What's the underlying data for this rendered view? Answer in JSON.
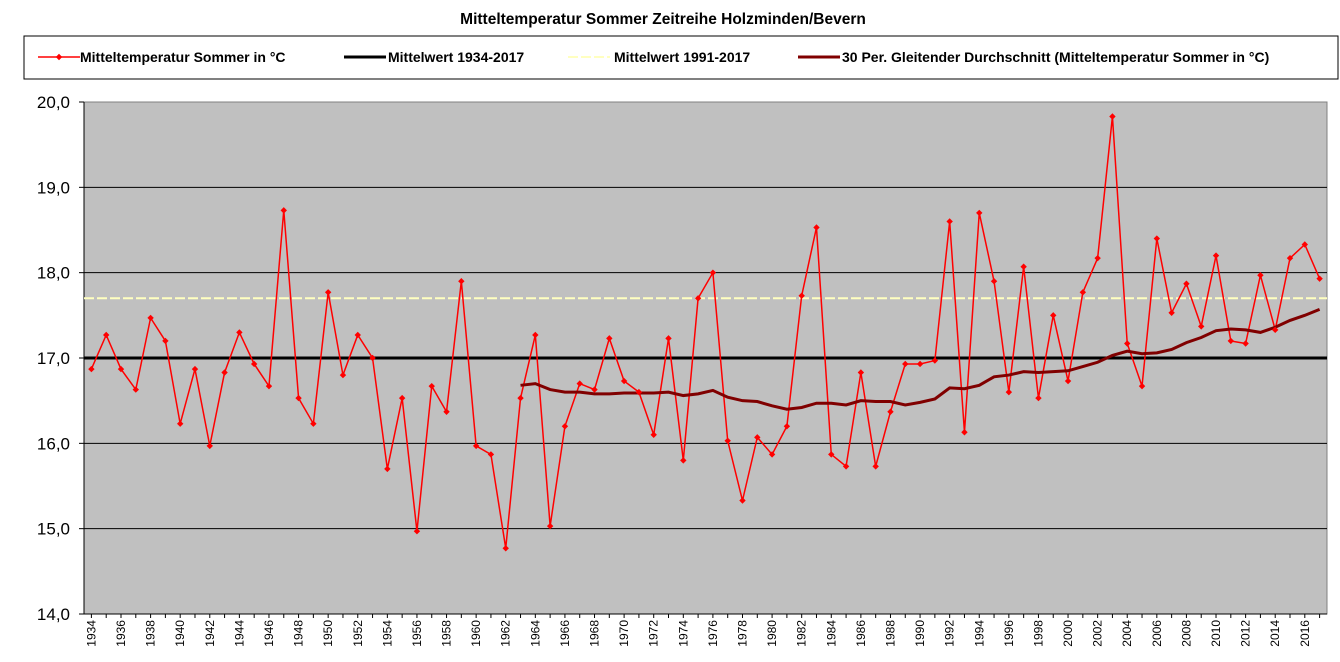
{
  "chart_data": {
    "type": "line",
    "title": "Mitteltemperatur Sommer Zeitreihe Holzminden/Bevern",
    "xlabel": "",
    "ylabel": "",
    "ylim": [
      14.0,
      20.0
    ],
    "y_ticks": [
      "14,0",
      "15,0",
      "16,0",
      "17,0",
      "18,0",
      "19,0",
      "20,0"
    ],
    "x_tick_labels": [
      "1934",
      "1936",
      "1938",
      "1940",
      "1942",
      "1944",
      "1946",
      "1948",
      "1950",
      "1952",
      "1954",
      "1956",
      "1958",
      "1960",
      "1962",
      "1964",
      "1966",
      "1968",
      "1970",
      "1972",
      "1974",
      "1976",
      "1978",
      "1980",
      "1982",
      "1984",
      "1986",
      "1988",
      "1990",
      "1992",
      "1994",
      "1996",
      "1998",
      "2000",
      "2002",
      "2004",
      "2006",
      "2008",
      "2010",
      "2012",
      "2014",
      "2016"
    ],
    "grid": true,
    "legend_position": "top",
    "plot_background": "#c0c0c0",
    "years": [
      1934,
      1935,
      1936,
      1937,
      1938,
      1939,
      1940,
      1941,
      1942,
      1943,
      1944,
      1945,
      1946,
      1947,
      1948,
      1949,
      1950,
      1951,
      1952,
      1953,
      1954,
      1955,
      1956,
      1957,
      1958,
      1959,
      1960,
      1961,
      1962,
      1963,
      1964,
      1965,
      1966,
      1967,
      1968,
      1969,
      1970,
      1971,
      1972,
      1973,
      1974,
      1975,
      1976,
      1977,
      1978,
      1979,
      1980,
      1981,
      1982,
      1983,
      1984,
      1985,
      1986,
      1987,
      1988,
      1989,
      1990,
      1991,
      1992,
      1993,
      1994,
      1995,
      1996,
      1997,
      1998,
      1999,
      2000,
      2001,
      2002,
      2003,
      2004,
      2005,
      2006,
      2007,
      2008,
      2009,
      2010,
      2011,
      2012,
      2013,
      2014,
      2015,
      2016,
      2017
    ],
    "series": [
      {
        "name": "Mitteltemperatur Sommer in °C",
        "color": "#ff0000",
        "style": "line-markers",
        "values": [
          16.87,
          17.27,
          16.87,
          16.63,
          17.47,
          17.2,
          16.23,
          16.87,
          15.97,
          16.83,
          17.3,
          16.93,
          16.67,
          18.73,
          16.53,
          16.23,
          17.77,
          16.8,
          17.27,
          17.0,
          15.7,
          16.53,
          14.97,
          16.67,
          16.37,
          17.9,
          15.97,
          15.87,
          14.77,
          16.53,
          17.27,
          15.03,
          16.2,
          16.7,
          16.63,
          17.23,
          16.73,
          16.6,
          16.1,
          17.23,
          15.8,
          17.7,
          18.0,
          16.03,
          15.33,
          16.07,
          15.87,
          16.2,
          17.73,
          18.53,
          15.87,
          15.73,
          16.83,
          15.73,
          16.37,
          16.93,
          16.93,
          16.97,
          18.6,
          16.13,
          18.7,
          17.9,
          16.6,
          18.07,
          16.53,
          17.5,
          16.73,
          17.77,
          18.17,
          19.83,
          17.17,
          16.67,
          18.4,
          17.53,
          17.87,
          17.37,
          18.2,
          17.2,
          17.17,
          17.97,
          17.33,
          18.17,
          18.33,
          17.93
        ]
      },
      {
        "name": "Mittelwert 1934-2017",
        "color": "#000000",
        "style": "flat",
        "values": [
          17.0
        ]
      },
      {
        "name": "Mittelwert 1991-2017",
        "color": "#ffffc0",
        "style": "flat-dashed",
        "values": [
          17.7
        ]
      },
      {
        "name": "30 Per. Gleitender Durchschnitt (Mitteltemperatur Sommer in °C)",
        "color": "#800000",
        "style": "line",
        "start_year": 1963,
        "values": [
          16.68,
          16.7,
          16.63,
          16.6,
          16.6,
          16.58,
          16.58,
          16.59,
          16.59,
          16.59,
          16.6,
          16.56,
          16.58,
          16.62,
          16.54,
          16.5,
          16.49,
          16.44,
          16.4,
          16.42,
          16.47,
          16.47,
          16.45,
          16.5,
          16.49,
          16.49,
          16.45,
          16.48,
          16.52,
          16.65,
          16.64,
          16.68,
          16.78,
          16.8,
          16.84,
          16.83,
          16.84,
          16.85,
          16.9,
          16.95,
          17.03,
          17.08,
          17.05,
          17.06,
          17.1,
          17.18,
          17.24,
          17.32,
          17.34,
          17.33,
          17.3,
          17.36,
          17.44,
          17.5,
          17.57
        ]
      }
    ]
  }
}
